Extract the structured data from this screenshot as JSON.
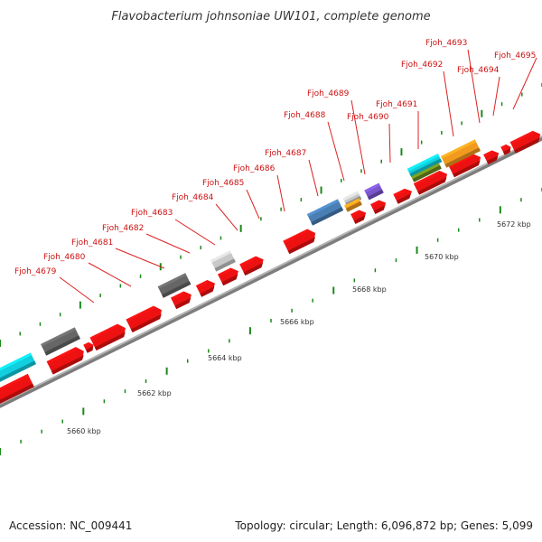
{
  "title": "Flavobacterium johnsoniae UW101, complete genome",
  "footer": {
    "accession": "Accession: NC_009441",
    "summary": "Topology: circular; Length: 6,096,872 bp; Genes: 5,099"
  },
  "colors": {
    "gene_red": "#ee1111",
    "leader_line": "#dd2222",
    "tick_green": "#1a8a1a",
    "backbone": "#9a9a9a",
    "dark_gray": "#666666",
    "light_gray": "#c8c8c8",
    "steel_blue": "#4a7fb5",
    "orange": "#f29a1e",
    "purple": "#7a55cc",
    "cyan": "#11cfdf",
    "olive": "#6e8e1e"
  },
  "kbp_labels": [
    "5660 kbp",
    "5662 kbp",
    "5664 kbp",
    "5666 kbp",
    "5668 kbp",
    "5670 kbp",
    "5672 kbp"
  ],
  "gene_labels": [
    "Fjoh_4679",
    "Fjoh_4680",
    "Fjoh_4681",
    "Fjoh_4682",
    "Fjoh_4683",
    "Fjoh_4684",
    "Fjoh_4685",
    "Fjoh_4686",
    "Fjoh_4687",
    "Fjoh_4688",
    "Fjoh_4689",
    "Fjoh_4690",
    "Fjoh_4691",
    "Fjoh_4692",
    "Fjoh_4693",
    "Fjoh_4694",
    "Fjoh_4695"
  ]
}
